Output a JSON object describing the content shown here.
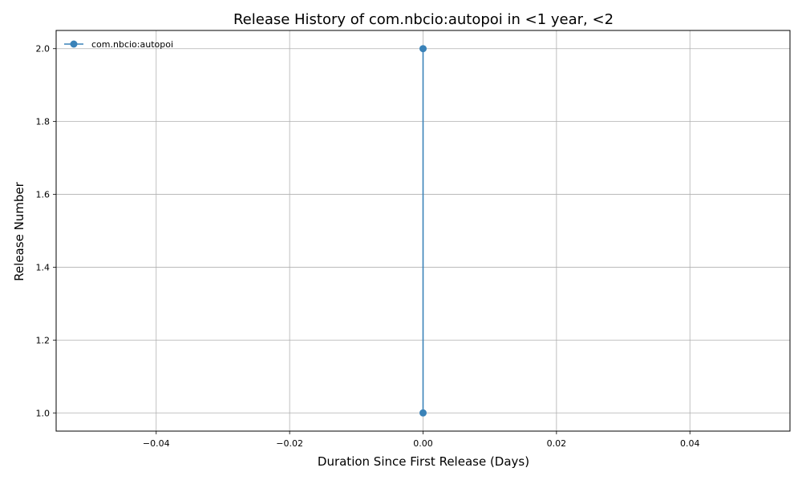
{
  "chart_data": {
    "type": "line",
    "title": "Release History of com.nbcio:autopoi in <1 year, <2",
    "xlabel": "Duration Since First Release (Days)",
    "ylabel": "Release Number",
    "xlim": [
      -0.055,
      0.055
    ],
    "ylim": [
      0.95,
      2.05
    ],
    "x_ticks": [
      -0.04,
      -0.02,
      0.0,
      0.02,
      0.04
    ],
    "x_tick_labels": [
      "−0.04",
      "−0.02",
      "0.00",
      "0.02",
      "0.04"
    ],
    "y_ticks": [
      1.0,
      1.2,
      1.4,
      1.6,
      1.8,
      2.0
    ],
    "y_tick_labels": [
      "1.0",
      "1.2",
      "1.4",
      "1.6",
      "1.8",
      "2.0"
    ],
    "grid": true,
    "legend_position": "top-left",
    "series": [
      {
        "name": "com.nbcio:autopoi",
        "color": "#3a82b8",
        "marker": "circle",
        "x": [
          0,
          0
        ],
        "y": [
          1,
          2
        ]
      }
    ]
  }
}
